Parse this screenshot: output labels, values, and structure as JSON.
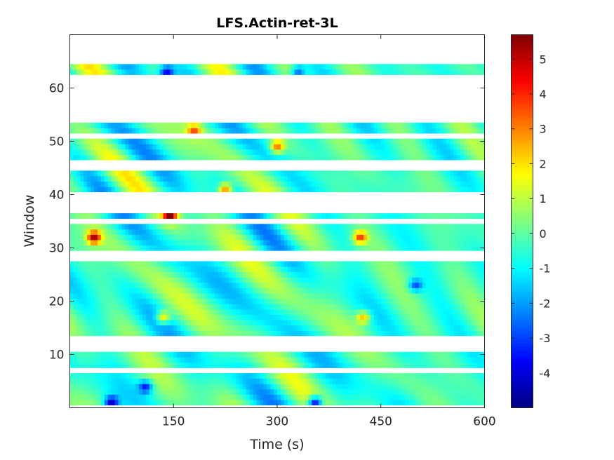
{
  "chart_data": {
    "type": "heatmap",
    "title": "LFS.Actin-ret-3L",
    "xlabel": "Time (s)",
    "ylabel": "Window",
    "xlim": [
      0,
      600
    ],
    "ylim": [
      0,
      70
    ],
    "xticks": [
      150,
      300,
      450,
      600
    ],
    "xtick_labels": [
      "150",
      "300",
      "450",
      "600"
    ],
    "yticks": [
      10,
      20,
      30,
      40,
      50,
      60
    ],
    "ytick_labels": [
      "10",
      "20",
      "30",
      "40",
      "50",
      "60"
    ],
    "colormap": "jet",
    "clim": [
      -5,
      5.7
    ],
    "colorbar_ticks": [
      -4,
      -3,
      -2,
      -1,
      0,
      1,
      2,
      3,
      4,
      5
    ],
    "colorbar_tick_labels": [
      "-4",
      "-3",
      "-2",
      "-1",
      "0",
      "1",
      "2",
      "3",
      "4",
      "5"
    ],
    "grid": false,
    "data_window_rows": [
      [
        1,
        6
      ],
      [
        8,
        10
      ],
      [
        14,
        27
      ],
      [
        30,
        34
      ],
      [
        36,
        36
      ],
      [
        41,
        44
      ],
      [
        47,
        50
      ],
      [
        52,
        53
      ],
      [
        63,
        64
      ]
    ],
    "time_bin_seconds": 5,
    "values_note": "",
    "hotspots": [
      {
        "t": 35,
        "w": 32,
        "v": 5.0
      },
      {
        "t": 145,
        "w": 36,
        "v": 5.2
      },
      {
        "t": 180,
        "w": 52,
        "v": 3.0
      },
      {
        "t": 225,
        "w": 41,
        "v": 4.0
      },
      {
        "t": 300,
        "w": 49,
        "v": 3.5
      },
      {
        "t": 420,
        "w": 32,
        "v": 3.8
      },
      {
        "t": 135,
        "w": 17,
        "v": 3.2
      },
      {
        "t": 425,
        "w": 17,
        "v": 3.0
      },
      {
        "t": 355,
        "w": 1,
        "v": -4.6
      },
      {
        "t": 60,
        "w": 1,
        "v": -3.8
      },
      {
        "t": 110,
        "w": 4,
        "v": -3.0
      },
      {
        "t": 140,
        "w": 63,
        "v": -3.2
      },
      {
        "t": 330,
        "w": 63,
        "v": -2.8
      },
      {
        "t": 500,
        "w": 23,
        "v": -2.6
      }
    ]
  }
}
